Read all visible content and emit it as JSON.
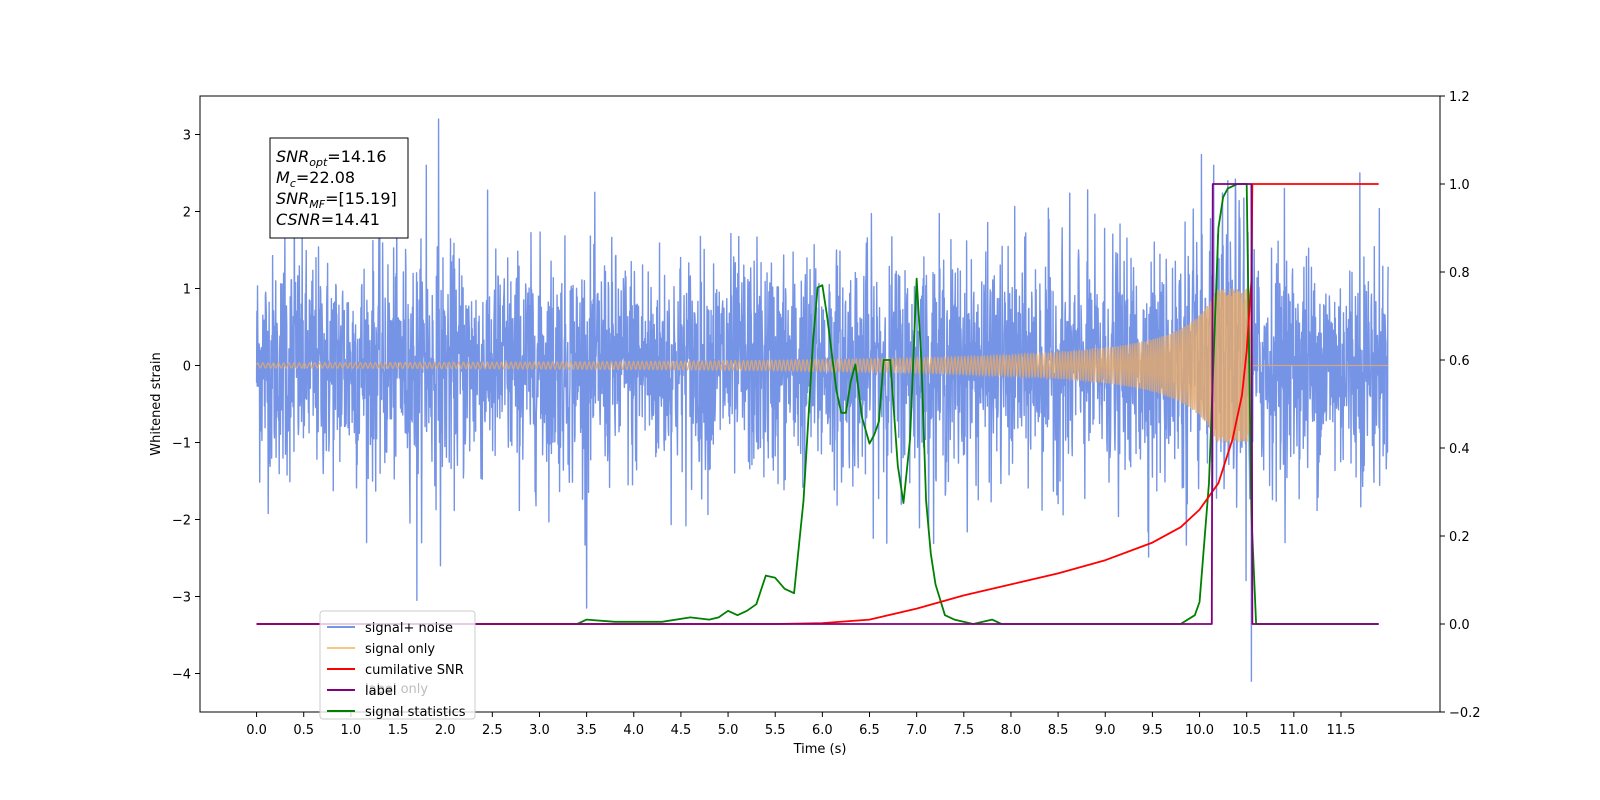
{
  "chart_data": {
    "type": "line",
    "xlabel": "Time (s)",
    "ylabel_left": "Whitened strain",
    "ylabel_right": "",
    "xlim": [
      -0.6,
      12.55
    ],
    "ylim_left": [
      -4.5,
      3.5
    ],
    "ylim_right": [
      -0.2,
      1.2
    ],
    "x_ticks": [
      "0.0",
      "0.5",
      "1.0",
      "1.5",
      "2.0",
      "2.5",
      "3.0",
      "3.5",
      "4.0",
      "4.5",
      "5.0",
      "5.5",
      "6.0",
      "6.5",
      "7.0",
      "7.5",
      "8.0",
      "8.5",
      "9.0",
      "9.5",
      "10.0",
      "10.5",
      "11.0",
      "11.5"
    ],
    "y_ticks_left": [
      "3",
      "2",
      "1",
      "0",
      "−1",
      "−2",
      "−3",
      "−4"
    ],
    "y_ticks_right": [
      "1.2",
      "1.0",
      "0.8",
      "0.6",
      "0.4",
      "0.2",
      "0.0",
      "−0.2"
    ],
    "grid": false,
    "annotation": {
      "lines": [
        {
          "sym": "SNR",
          "sub": "opt",
          "val": "=14.16"
        },
        {
          "sym": "M",
          "sub": "c",
          "val": "=22.08"
        },
        {
          "sym": "SNR",
          "sub": "MF",
          "val": "=[15.19]"
        },
        {
          "sym": "CSNR",
          "sub": "",
          "val": "=14.41"
        }
      ]
    },
    "legend": {
      "placement": "lower-left",
      "entries": [
        {
          "label": "signal+ noise",
          "color": "#7694e6"
        },
        {
          "label": "signal only",
          "color": "#f5c784"
        },
        {
          "label": "cumilative SNR",
          "color": "#ff0000"
        },
        {
          "label": "label",
          "color": "#800080"
        },
        {
          "label": "signal statistics",
          "color": "#008000"
        }
      ],
      "overlapped_text": "label only"
    },
    "series": [
      {
        "name": "signal+ noise",
        "axis": "left",
        "color": "#7694e6",
        "kind": "noise",
        "x_range": [
          0.0,
          12.0
        ],
        "amplitude_typical": 1.6,
        "notable_spikes": [
          [
            0.3,
            1.7
          ],
          [
            0.4,
            2.3
          ],
          [
            1.7,
            -3.05
          ],
          [
            1.8,
            2.6
          ],
          [
            1.93,
            3.2
          ],
          [
            1.95,
            -2.6
          ],
          [
            3.5,
            -3.15
          ],
          [
            10.15,
            2.6
          ],
          [
            10.3,
            2.4
          ],
          [
            10.55,
            -4.1
          ],
          [
            11.7,
            2.5
          ],
          [
            10.9,
            2.3
          ]
        ]
      },
      {
        "name": "signal only",
        "axis": "left",
        "color": "#e0a870",
        "kind": "chirp",
        "x_range": [
          0.0,
          12.0
        ],
        "merger_time": 10.56,
        "peak_amplitude": 1.0
      },
      {
        "name": "cumilative SNR",
        "axis": "right",
        "color": "#ff0000",
        "x": [
          0.0,
          5.0,
          5.5,
          6.0,
          6.5,
          7.0,
          7.5,
          8.0,
          8.5,
          9.0,
          9.5,
          9.8,
          10.0,
          10.2,
          10.35,
          10.45,
          10.5,
          10.55,
          10.56,
          11.0,
          11.5,
          11.9
        ],
        "y": [
          0.0,
          0.0,
          0.0,
          0.002,
          0.01,
          0.035,
          0.065,
          0.09,
          0.115,
          0.145,
          0.185,
          0.22,
          0.26,
          0.32,
          0.42,
          0.52,
          0.62,
          0.78,
          1.0,
          1.0,
          1.0,
          1.0
        ]
      },
      {
        "name": "label",
        "axis": "right",
        "color": "#800080",
        "x": [
          0.0,
          10.13,
          10.14,
          10.55,
          10.56,
          11.9
        ],
        "y": [
          0.0,
          0.0,
          1.0,
          1.0,
          0.0,
          0.0
        ]
      },
      {
        "name": "signal statistics",
        "axis": "right",
        "color": "#008000",
        "x": [
          0.0,
          2.0,
          3.4,
          3.5,
          3.8,
          4.3,
          4.6,
          4.8,
          4.9,
          5.0,
          5.1,
          5.2,
          5.3,
          5.4,
          5.5,
          5.6,
          5.7,
          5.8,
          5.9,
          5.95,
          6.0,
          6.05,
          6.15,
          6.2,
          6.25,
          6.3,
          6.35,
          6.42,
          6.5,
          6.55,
          6.6,
          6.65,
          6.72,
          6.8,
          6.86,
          6.93,
          7.0,
          7.05,
          7.1,
          7.15,
          7.2,
          7.3,
          7.4,
          7.6,
          7.8,
          7.9,
          8.0,
          9.0,
          9.8,
          9.95,
          10.0,
          10.1,
          10.2,
          10.25,
          10.3,
          10.4,
          10.5,
          10.55,
          10.6,
          11.9
        ],
        "y": [
          0.0,
          0.0,
          0.0,
          0.01,
          0.005,
          0.005,
          0.015,
          0.01,
          0.015,
          0.03,
          0.02,
          0.03,
          0.045,
          0.11,
          0.105,
          0.08,
          0.07,
          0.28,
          0.64,
          0.765,
          0.77,
          0.7,
          0.53,
          0.48,
          0.48,
          0.55,
          0.59,
          0.47,
          0.41,
          0.43,
          0.46,
          0.6,
          0.6,
          0.36,
          0.275,
          0.42,
          0.785,
          0.6,
          0.28,
          0.16,
          0.09,
          0.02,
          0.01,
          0.0,
          0.01,
          0.0,
          0.0,
          0.0,
          0.0,
          0.02,
          0.05,
          0.32,
          0.9,
          0.97,
          0.99,
          1.0,
          1.0,
          0.25,
          0.0,
          0.0
        ]
      }
    ]
  }
}
